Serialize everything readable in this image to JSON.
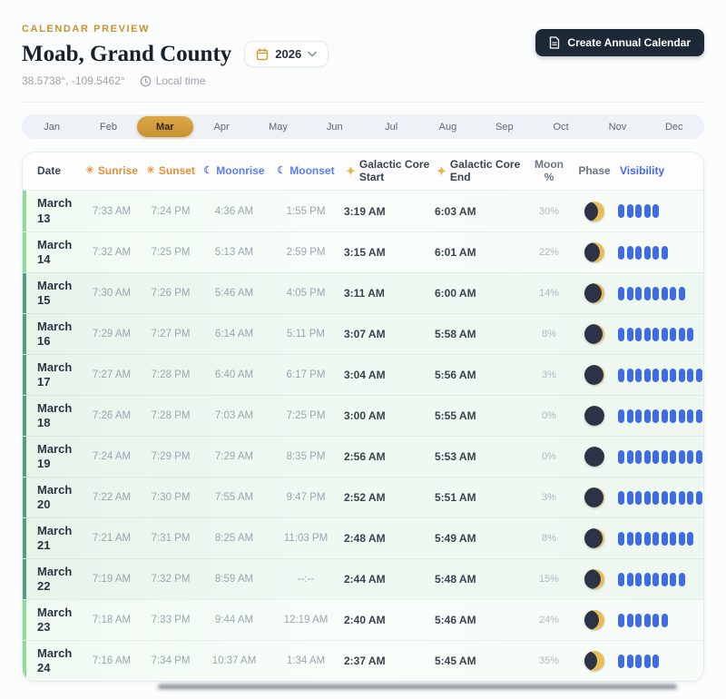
{
  "page": {
    "eyebrow": "CALENDAR PREVIEW",
    "title": "Moab, Grand County",
    "year": "2026",
    "coordinates": "38.5738°, -109.5462°",
    "local_time_label": "Local time",
    "create_button_label": "Create Annual Calendar"
  },
  "months": {
    "items": [
      "Jan",
      "Feb",
      "Mar",
      "Apr",
      "May",
      "Jun",
      "Jul",
      "Aug",
      "Sep",
      "Oct",
      "Nov",
      "Dec"
    ],
    "selected": "Mar"
  },
  "colors": {
    "accent_gold": "#c9912f",
    "accent_blue": "#3d6ce6",
    "button_dark": "#1e2937",
    "stripe_good": "#4f9f80",
    "stripe_fair": "#90d99c"
  },
  "table": {
    "columns": [
      {
        "key": "date",
        "label": "Date",
        "icon": "none"
      },
      {
        "key": "sunrise",
        "label": "Sunrise",
        "icon": "sun"
      },
      {
        "key": "sunset",
        "label": "Sunset",
        "icon": "sun"
      },
      {
        "key": "moonrise",
        "label": "Moonrise",
        "icon": "moon"
      },
      {
        "key": "moonset",
        "label": "Moonset",
        "icon": "moon"
      },
      {
        "key": "gcstart",
        "label": "Galactic Core Start",
        "icon": "sparkle"
      },
      {
        "key": "gcend",
        "label": "Galactic Core End",
        "icon": "sparkle"
      },
      {
        "key": "moonpct",
        "label": "Moon %",
        "icon": "none"
      },
      {
        "key": "phase",
        "label": "Phase",
        "icon": "none"
      },
      {
        "key": "vis",
        "label": "Visibility",
        "icon": "none"
      }
    ],
    "rows": [
      {
        "date": "March 13",
        "sunrise": "7:33 AM",
        "sunset": "7:24 PM",
        "moonrise": "4:36 AM",
        "moonset": "1:55 PM",
        "gc_start": "3:19 AM",
        "gc_end": "6:03 AM",
        "moon_pct": "30%",
        "moon_pct_value": 30,
        "visibility_bars": 5,
        "quality": "fair"
      },
      {
        "date": "March 14",
        "sunrise": "7:32 AM",
        "sunset": "7:25 PM",
        "moonrise": "5:13 AM",
        "moonset": "2:59 PM",
        "gc_start": "3:15 AM",
        "gc_end": "6:01 AM",
        "moon_pct": "22%",
        "moon_pct_value": 22,
        "visibility_bars": 6,
        "quality": "fair"
      },
      {
        "date": "March 15",
        "sunrise": "7:30 AM",
        "sunset": "7:26 PM",
        "moonrise": "5:46 AM",
        "moonset": "4:05 PM",
        "gc_start": "3:11 AM",
        "gc_end": "6:00 AM",
        "moon_pct": "14%",
        "moon_pct_value": 14,
        "visibility_bars": 8,
        "quality": "good"
      },
      {
        "date": "March 16",
        "sunrise": "7:29 AM",
        "sunset": "7:27 PM",
        "moonrise": "6:14 AM",
        "moonset": "5:11 PM",
        "gc_start": "3:07 AM",
        "gc_end": "5:58 AM",
        "moon_pct": "8%",
        "moon_pct_value": 8,
        "visibility_bars": 9,
        "quality": "good"
      },
      {
        "date": "March 17",
        "sunrise": "7:27 AM",
        "sunset": "7:28 PM",
        "moonrise": "6:40 AM",
        "moonset": "6:17 PM",
        "gc_start": "3:04 AM",
        "gc_end": "5:56 AM",
        "moon_pct": "3%",
        "moon_pct_value": 3,
        "visibility_bars": 10,
        "quality": "good"
      },
      {
        "date": "March 18",
        "sunrise": "7:26 AM",
        "sunset": "7:28 PM",
        "moonrise": "7:03 AM",
        "moonset": "7:25 PM",
        "gc_start": "3:00 AM",
        "gc_end": "5:55 AM",
        "moon_pct": "0%",
        "moon_pct_value": 0,
        "visibility_bars": 10,
        "quality": "good"
      },
      {
        "date": "March 19",
        "sunrise": "7:24 AM",
        "sunset": "7:29 PM",
        "moonrise": "7:29 AM",
        "moonset": "8:35 PM",
        "gc_start": "2:56 AM",
        "gc_end": "5:53 AM",
        "moon_pct": "0%",
        "moon_pct_value": 0,
        "visibility_bars": 10,
        "quality": "good"
      },
      {
        "date": "March 20",
        "sunrise": "7:22 AM",
        "sunset": "7:30 PM",
        "moonrise": "7:55 AM",
        "moonset": "9:47 PM",
        "gc_start": "2:52 AM",
        "gc_end": "5:51 AM",
        "moon_pct": "3%",
        "moon_pct_value": 3,
        "visibility_bars": 10,
        "quality": "good"
      },
      {
        "date": "March 21",
        "sunrise": "7:21 AM",
        "sunset": "7:31 PM",
        "moonrise": "8:25 AM",
        "moonset": "11:03 PM",
        "gc_start": "2:48 AM",
        "gc_end": "5:49 AM",
        "moon_pct": "8%",
        "moon_pct_value": 8,
        "visibility_bars": 9,
        "quality": "good"
      },
      {
        "date": "March 22",
        "sunrise": "7:19 AM",
        "sunset": "7:32 PM",
        "moonrise": "8:59 AM",
        "moonset": "--:--",
        "gc_start": "2:44 AM",
        "gc_end": "5:48 AM",
        "moon_pct": "15%",
        "moon_pct_value": 15,
        "visibility_bars": 8,
        "quality": "good"
      },
      {
        "date": "March 23",
        "sunrise": "7:18 AM",
        "sunset": "7:33 PM",
        "moonrise": "9:44 AM",
        "moonset": "12:19 AM",
        "gc_start": "2:40 AM",
        "gc_end": "5:46 AM",
        "moon_pct": "24%",
        "moon_pct_value": 24,
        "visibility_bars": 6,
        "quality": "fair"
      },
      {
        "date": "March 24",
        "sunrise": "7:16 AM",
        "sunset": "7:34 PM",
        "moonrise": "10:37 AM",
        "moonset": "1:34 AM",
        "gc_start": "2:37 AM",
        "gc_end": "5:45 AM",
        "moon_pct": "35%",
        "moon_pct_value": 35,
        "visibility_bars": 5,
        "quality": "fair"
      }
    ]
  }
}
